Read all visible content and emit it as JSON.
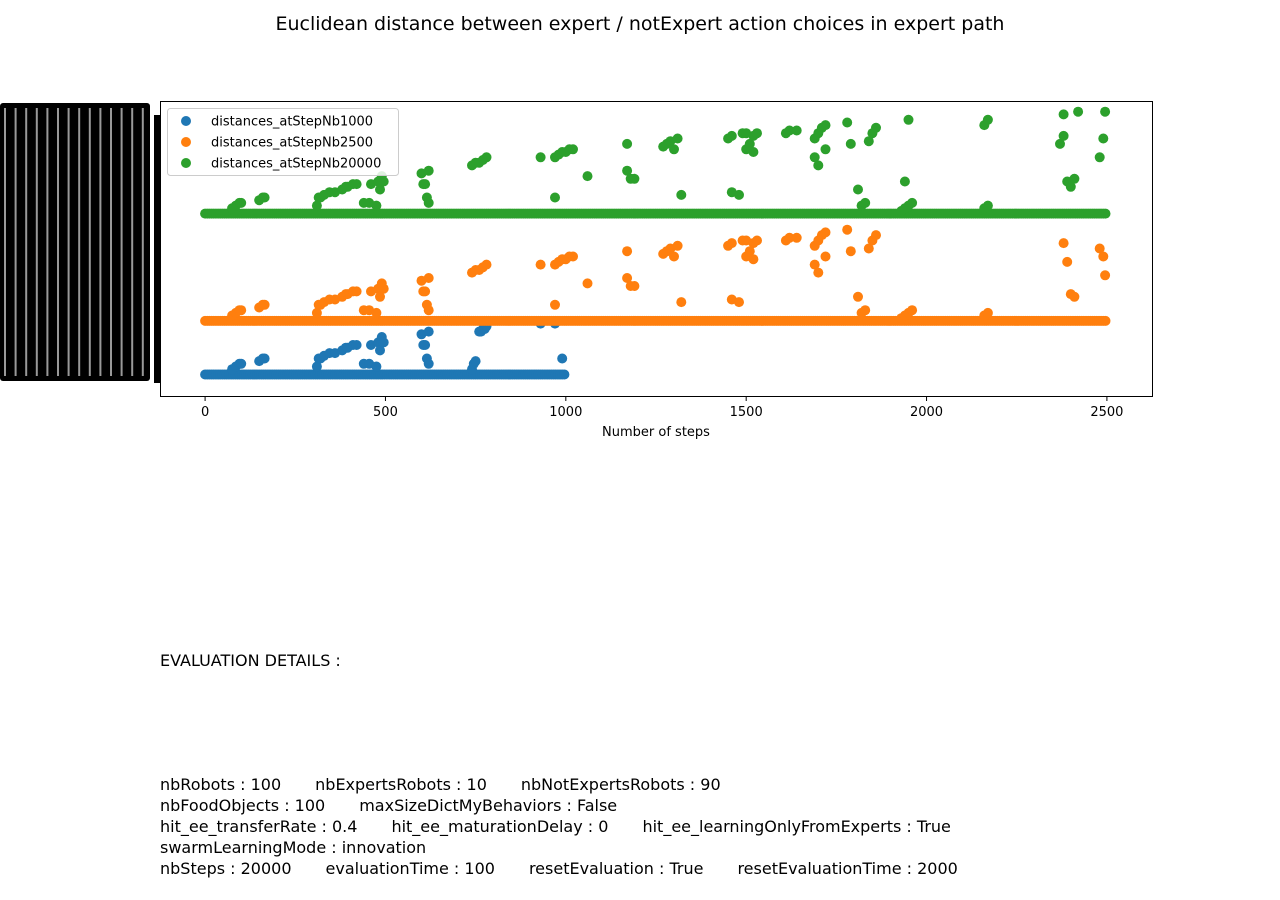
{
  "figure": {
    "title": "Euclidean distance between expert / notExpert action choices in expert path"
  },
  "chart_data": {
    "type": "scatter",
    "title": "Euclidean distance between expert / notExpert action choices in expert path",
    "xlabel": "Number of steps",
    "ylabel": "",
    "xlim": [
      -125,
      2625
    ],
    "ylim": [
      -0.08,
      1.02
    ],
    "x_ticks": [
      0,
      500,
      1000,
      1500,
      2000,
      2500
    ],
    "x_tick_labels": [
      "0",
      "500",
      "1000",
      "1500",
      "2000",
      "2500"
    ],
    "y_tick_labels_note": "y tick labels rendered as an illegible overlapping black block",
    "grid": false,
    "legend_position": "upper left",
    "series": [
      {
        "name": "distances_atStepNb1000",
        "color": "#1f77b4",
        "n_steps": 1000,
        "baseline": 0.0,
        "points": [
          [
            75,
            0.02
          ],
          [
            85,
            0.03
          ],
          [
            95,
            0.04
          ],
          [
            100,
            0.04
          ],
          [
            150,
            0.05
          ],
          [
            160,
            0.06
          ],
          [
            165,
            0.06
          ],
          [
            310,
            0.03
          ],
          [
            315,
            0.06
          ],
          [
            320,
            0.06
          ],
          [
            330,
            0.07
          ],
          [
            345,
            0.08
          ],
          [
            360,
            0.08
          ],
          [
            380,
            0.09
          ],
          [
            390,
            0.1
          ],
          [
            395,
            0.1
          ],
          [
            410,
            0.11
          ],
          [
            420,
            0.11
          ],
          [
            440,
            0.04
          ],
          [
            455,
            0.04
          ],
          [
            460,
            0.11
          ],
          [
            475,
            0.03
          ],
          [
            480,
            0.12
          ],
          [
            485,
            0.09
          ],
          [
            490,
            0.14
          ],
          [
            495,
            0.12
          ],
          [
            600,
            0.15
          ],
          [
            610,
            0.11
          ],
          [
            620,
            0.16
          ],
          [
            605,
            0.11
          ],
          [
            615,
            0.06
          ],
          [
            620,
            0.04
          ],
          [
            740,
            0.02
          ],
          [
            745,
            0.04
          ],
          [
            750,
            0.05
          ],
          [
            760,
            0.16
          ],
          [
            765,
            0.16
          ],
          [
            770,
            0.17
          ],
          [
            775,
            0.17
          ],
          [
            780,
            0.18
          ],
          [
            930,
            0.19
          ],
          [
            970,
            0.19
          ],
          [
            990,
            0.06
          ]
        ]
      },
      {
        "name": "distances_atStepNb2500",
        "color": "#ff7f0e",
        "n_steps": 2500,
        "baseline": 0.2,
        "points": [
          [
            75,
            0.22
          ],
          [
            85,
            0.23
          ],
          [
            95,
            0.24
          ],
          [
            100,
            0.24
          ],
          [
            150,
            0.25
          ],
          [
            160,
            0.26
          ],
          [
            165,
            0.26
          ],
          [
            310,
            0.23
          ],
          [
            315,
            0.26
          ],
          [
            320,
            0.26
          ],
          [
            330,
            0.27
          ],
          [
            345,
            0.28
          ],
          [
            360,
            0.28
          ],
          [
            380,
            0.29
          ],
          [
            390,
            0.3
          ],
          [
            395,
            0.3
          ],
          [
            410,
            0.31
          ],
          [
            420,
            0.31
          ],
          [
            440,
            0.24
          ],
          [
            455,
            0.24
          ],
          [
            460,
            0.31
          ],
          [
            475,
            0.23
          ],
          [
            480,
            0.32
          ],
          [
            485,
            0.29
          ],
          [
            490,
            0.34
          ],
          [
            495,
            0.32
          ],
          [
            600,
            0.35
          ],
          [
            610,
            0.31
          ],
          [
            620,
            0.36
          ],
          [
            605,
            0.31
          ],
          [
            615,
            0.26
          ],
          [
            620,
            0.24
          ],
          [
            740,
            0.38
          ],
          [
            750,
            0.39
          ],
          [
            760,
            0.39
          ],
          [
            770,
            0.4
          ],
          [
            780,
            0.41
          ],
          [
            930,
            0.41
          ],
          [
            970,
            0.41
          ],
          [
            980,
            0.42
          ],
          [
            990,
            0.43
          ],
          [
            1000,
            0.43
          ],
          [
            1010,
            0.44
          ],
          [
            1020,
            0.44
          ],
          [
            970,
            0.26
          ],
          [
            1060,
            0.34
          ],
          [
            1170,
            0.36
          ],
          [
            1170,
            0.46
          ],
          [
            1180,
            0.33
          ],
          [
            1190,
            0.33
          ],
          [
            1270,
            0.45
          ],
          [
            1280,
            0.46
          ],
          [
            1290,
            0.47
          ],
          [
            1300,
            0.44
          ],
          [
            1310,
            0.48
          ],
          [
            1320,
            0.27
          ],
          [
            1450,
            0.48
          ],
          [
            1460,
            0.49
          ],
          [
            1490,
            0.5
          ],
          [
            1500,
            0.5
          ],
          [
            1500,
            0.44
          ],
          [
            1510,
            0.46
          ],
          [
            1520,
            0.49
          ],
          [
            1530,
            0.5
          ],
          [
            1460,
            0.28
          ],
          [
            1480,
            0.27
          ],
          [
            1520,
            0.43
          ],
          [
            1610,
            0.5
          ],
          [
            1620,
            0.51
          ],
          [
            1640,
            0.51
          ],
          [
            1690,
            0.48
          ],
          [
            1700,
            0.5
          ],
          [
            1710,
            0.52
          ],
          [
            1720,
            0.53
          ],
          [
            1690,
            0.41
          ],
          [
            1700,
            0.38
          ],
          [
            1720,
            0.44
          ],
          [
            1780,
            0.54
          ],
          [
            1790,
            0.46
          ],
          [
            1810,
            0.29
          ],
          [
            1820,
            0.23
          ],
          [
            1830,
            0.24
          ],
          [
            1840,
            0.47
          ],
          [
            1850,
            0.5
          ],
          [
            1860,
            0.52
          ],
          [
            1930,
            0.21
          ],
          [
            1940,
            0.22
          ],
          [
            1950,
            0.23
          ],
          [
            1960,
            0.24
          ],
          [
            2160,
            0.22
          ],
          [
            2170,
            0.23
          ],
          [
            2380,
            0.49
          ],
          [
            2390,
            0.42
          ],
          [
            2400,
            0.3
          ],
          [
            2410,
            0.29
          ],
          [
            2480,
            0.47
          ],
          [
            2490,
            0.44
          ],
          [
            2495,
            0.37
          ]
        ]
      },
      {
        "name": "distances_atStepNb20000",
        "color": "#2ca02c",
        "n_steps": 2500,
        "baseline": 0.6,
        "points": [
          [
            75,
            0.62
          ],
          [
            85,
            0.63
          ],
          [
            95,
            0.64
          ],
          [
            100,
            0.64
          ],
          [
            150,
            0.65
          ],
          [
            160,
            0.66
          ],
          [
            165,
            0.66
          ],
          [
            310,
            0.63
          ],
          [
            315,
            0.66
          ],
          [
            320,
            0.66
          ],
          [
            330,
            0.67
          ],
          [
            345,
            0.68
          ],
          [
            360,
            0.68
          ],
          [
            380,
            0.69
          ],
          [
            390,
            0.7
          ],
          [
            395,
            0.7
          ],
          [
            410,
            0.71
          ],
          [
            420,
            0.71
          ],
          [
            440,
            0.64
          ],
          [
            455,
            0.64
          ],
          [
            460,
            0.71
          ],
          [
            475,
            0.63
          ],
          [
            480,
            0.72
          ],
          [
            485,
            0.69
          ],
          [
            490,
            0.74
          ],
          [
            495,
            0.72
          ],
          [
            600,
            0.75
          ],
          [
            610,
            0.71
          ],
          [
            620,
            0.76
          ],
          [
            605,
            0.71
          ],
          [
            615,
            0.66
          ],
          [
            620,
            0.64
          ],
          [
            740,
            0.78
          ],
          [
            750,
            0.79
          ],
          [
            760,
            0.79
          ],
          [
            770,
            0.8
          ],
          [
            780,
            0.81
          ],
          [
            930,
            0.81
          ],
          [
            970,
            0.81
          ],
          [
            980,
            0.82
          ],
          [
            990,
            0.83
          ],
          [
            1000,
            0.83
          ],
          [
            1010,
            0.84
          ],
          [
            1020,
            0.84
          ],
          [
            970,
            0.66
          ],
          [
            1060,
            0.74
          ],
          [
            1170,
            0.76
          ],
          [
            1170,
            0.86
          ],
          [
            1180,
            0.73
          ],
          [
            1190,
            0.73
          ],
          [
            1270,
            0.85
          ],
          [
            1280,
            0.86
          ],
          [
            1290,
            0.87
          ],
          [
            1300,
            0.84
          ],
          [
            1310,
            0.88
          ],
          [
            1320,
            0.67
          ],
          [
            1450,
            0.88
          ],
          [
            1460,
            0.89
          ],
          [
            1490,
            0.9
          ],
          [
            1500,
            0.9
          ],
          [
            1500,
            0.84
          ],
          [
            1510,
            0.86
          ],
          [
            1520,
            0.89
          ],
          [
            1530,
            0.9
          ],
          [
            1460,
            0.68
          ],
          [
            1480,
            0.67
          ],
          [
            1520,
            0.83
          ],
          [
            1610,
            0.9
          ],
          [
            1620,
            0.91
          ],
          [
            1640,
            0.91
          ],
          [
            1690,
            0.88
          ],
          [
            1700,
            0.9
          ],
          [
            1710,
            0.92
          ],
          [
            1720,
            0.93
          ],
          [
            1690,
            0.81
          ],
          [
            1700,
            0.78
          ],
          [
            1720,
            0.84
          ],
          [
            1780,
            0.94
          ],
          [
            1790,
            0.86
          ],
          [
            1810,
            0.69
          ],
          [
            1820,
            0.63
          ],
          [
            1830,
            0.64
          ],
          [
            1840,
            0.87
          ],
          [
            1850,
            0.9
          ],
          [
            1860,
            0.92
          ],
          [
            1930,
            0.61
          ],
          [
            1940,
            0.62
          ],
          [
            1950,
            0.63
          ],
          [
            1960,
            0.64
          ],
          [
            1940,
            0.72
          ],
          [
            1950,
            0.95
          ],
          [
            2160,
            0.62
          ],
          [
            2170,
            0.63
          ],
          [
            2160,
            0.93
          ],
          [
            2170,
            0.95
          ],
          [
            2370,
            0.86
          ],
          [
            2380,
            0.89
          ],
          [
            2390,
            0.72
          ],
          [
            2400,
            0.7
          ],
          [
            2410,
            0.73
          ],
          [
            2380,
            0.97
          ],
          [
            2420,
            0.98
          ],
          [
            2480,
            0.81
          ],
          [
            2490,
            0.88
          ],
          [
            2495,
            0.98
          ]
        ]
      }
    ]
  },
  "details": {
    "heading": "EVALUATION DETAILS :",
    "rows": [
      [
        "nbRobots : 100",
        "nbExpertsRobots : 10",
        "nbNotExpertsRobots : 90"
      ],
      [
        "nbFoodObjects : 100",
        "maxSizeDictMyBehaviors : False"
      ],
      [
        "hit_ee_transferRate : 0.4",
        "hit_ee_maturationDelay : 0",
        "hit_ee_learningOnlyFromExperts : True"
      ],
      [
        "swarmLearningMode : innovation"
      ],
      [
        "nbSteps : 20000",
        "evaluationTime : 100",
        "resetEvaluation : True",
        "resetEvaluationTime : 2000"
      ]
    ]
  }
}
